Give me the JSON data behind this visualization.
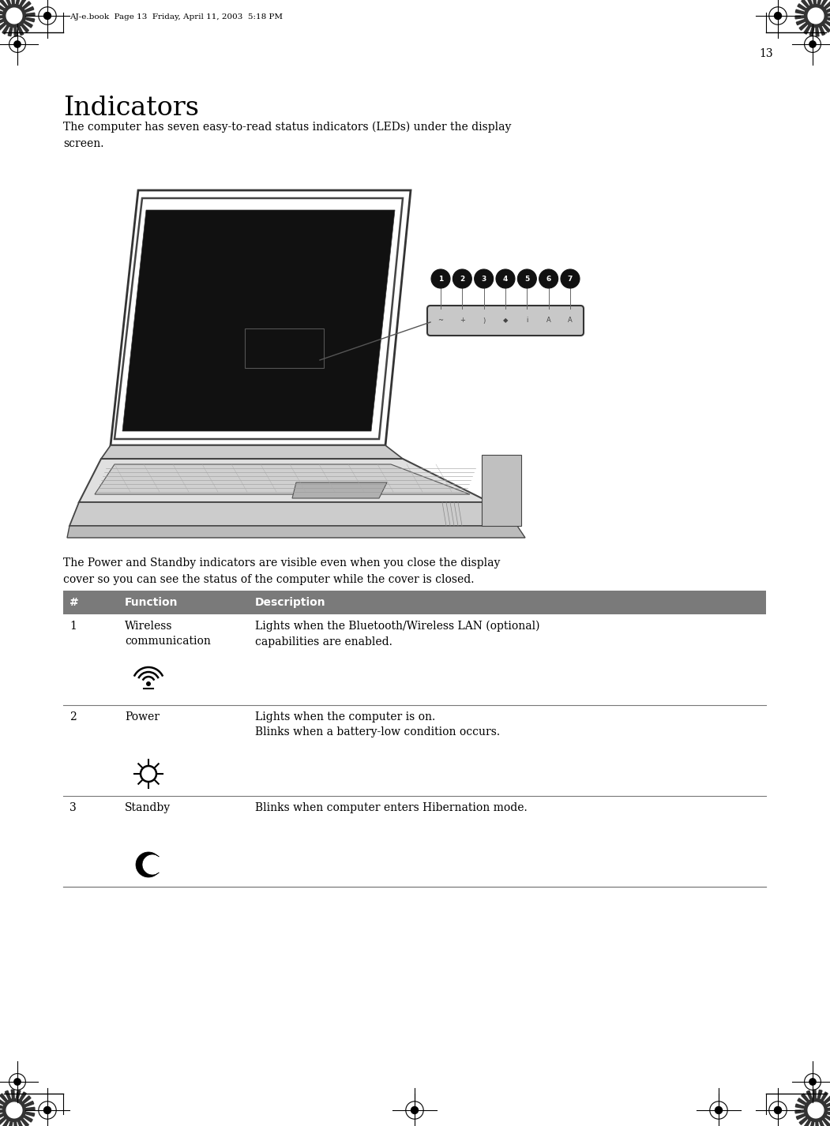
{
  "bg_color": "#ffffff",
  "page_number": "13",
  "header_text": "AJ-e.book  Page 13  Friday, April 11, 2003  5:18 PM",
  "title": "Indicators",
  "title_fontsize": 24,
  "body_text_1": "The computer has seven easy-to-read status indicators (LEDs) under the display\nscreen.",
  "body_text_2": "The Power and Standby indicators are visible even when you close the display\ncover so you can see the status of the computer while the cover is closed.",
  "table_header_bg": "#7a7a7a",
  "table_header_color": "#ffffff",
  "table_col1_header": "#",
  "table_col2_header": "Function",
  "table_col3_header": "Description",
  "table_rows": [
    {
      "num": "1",
      "function": "Wireless\ncommunication",
      "description": "Lights when the Bluetooth/Wireless LAN (optional)\ncapabilities are enabled.",
      "icon": "wireless"
    },
    {
      "num": "2",
      "function": "Power",
      "description": "Lights when the computer is on.\nBlinks when a battery-low condition occurs.",
      "icon": "power"
    },
    {
      "num": "3",
      "function": "Standby",
      "description": "Blinks when computer enters Hibernation mode.",
      "icon": "standby"
    }
  ],
  "text_color": "#000000",
  "body_fontsize": 10,
  "table_fontsize": 10
}
